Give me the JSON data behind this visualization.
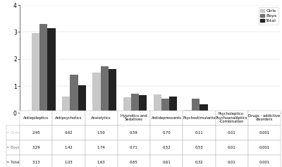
{
  "categories": [
    "Antiepileptics",
    "Antipsychotics",
    "Anxiolytics",
    "Hypnotics and\nSedatives",
    "Antidepressants",
    "Psychostimulants",
    "Psycholeptics-\nPsychoanalēptics\n-Combination",
    "Drugs - addictive\ndisorders"
  ],
  "col_headers": [
    "Antiepileptics",
    "Antipsychotics",
    "Anxiolytics",
    "Hypnotics and\nSedatives",
    "Antidepressants",
    "Psychostimulants",
    "Psycholeptics-\nPsychoanalēptics\n-Combination",
    "Drugs - addictive\ndisorders"
  ],
  "girls": [
    2.95,
    0.62,
    1.5,
    0.59,
    0.7,
    0.11,
    0.01,
    0.001
  ],
  "boys": [
    3.29,
    1.42,
    1.74,
    0.71,
    0.52,
    0.53,
    0.01,
    0.001
  ],
  "total": [
    3.13,
    1.03,
    1.63,
    0.65,
    0.61,
    0.32,
    0.01,
    0.001
  ],
  "color_girls": "#c8c8c8",
  "color_boys": "#707070",
  "color_total": "#222222",
  "ylim": [
    0,
    4
  ],
  "yticks": [
    0,
    1,
    2,
    3,
    4
  ],
  "bar_width": 0.26,
  "table_row_labels": [
    "= Girls",
    "= Boys",
    "= Total"
  ],
  "table_data": [
    [
      "2.95",
      "0.62",
      "1.50",
      "0.59",
      "0.70",
      "0.11",
      "0.01",
      "0.001"
    ],
    [
      "3.29",
      "1.42",
      "1.74",
      "0.71",
      "0.52",
      "0.53",
      "0.01",
      "0.001"
    ],
    [
      "3.13",
      "1.03",
      "1.63",
      "0.65",
      "0.61",
      "0.32",
      "0.01",
      "0.001"
    ]
  ],
  "legend_labels": [
    "Girls",
    "Boys",
    "Total"
  ]
}
